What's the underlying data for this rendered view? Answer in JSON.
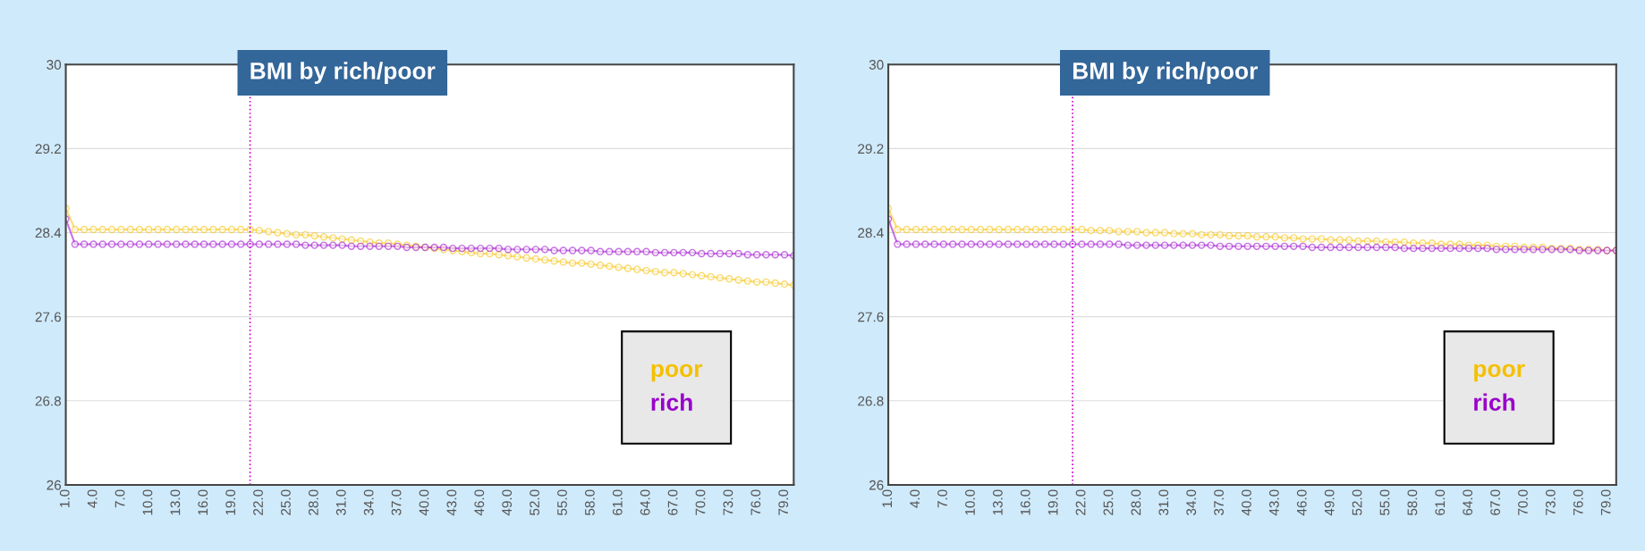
{
  "chart_data": [
    {
      "type": "line",
      "title": "BMI by rich/poor",
      "x": [
        1,
        2,
        3,
        4,
        5,
        6,
        7,
        8,
        9,
        10,
        11,
        12,
        13,
        14,
        15,
        16,
        17,
        18,
        19,
        20,
        21,
        22,
        23,
        24,
        25,
        26,
        27,
        28,
        29,
        30,
        31,
        32,
        33,
        34,
        35,
        36,
        37,
        38,
        39,
        40,
        41,
        42,
        43,
        44,
        45,
        46,
        47,
        48,
        49,
        50,
        51,
        52,
        53,
        54,
        55,
        56,
        57,
        58,
        59,
        60,
        61,
        62,
        63,
        64,
        65,
        66,
        67,
        68,
        69,
        70,
        71,
        72,
        73,
        74,
        75,
        76,
        77,
        78,
        79,
        80
      ],
      "series": [
        {
          "name": "poor",
          "color": "#f5c000",
          "values": [
            28.63,
            28.43,
            28.43,
            28.43,
            28.43,
            28.43,
            28.43,
            28.43,
            28.43,
            28.43,
            28.43,
            28.43,
            28.43,
            28.43,
            28.43,
            28.43,
            28.43,
            28.43,
            28.43,
            28.43,
            28.43,
            28.42,
            28.41,
            28.4,
            28.39,
            28.38,
            28.38,
            28.37,
            28.36,
            28.35,
            28.34,
            28.33,
            28.32,
            28.31,
            28.3,
            28.3,
            28.29,
            28.28,
            28.27,
            28.26,
            28.25,
            28.24,
            28.23,
            28.22,
            28.21,
            28.2,
            28.2,
            28.19,
            28.18,
            28.17,
            28.16,
            28.15,
            28.14,
            28.13,
            28.12,
            28.11,
            28.11,
            28.1,
            28.09,
            28.08,
            28.07,
            28.06,
            28.05,
            28.04,
            28.03,
            28.02,
            28.02,
            28.01,
            28.0,
            27.99,
            27.98,
            27.97,
            27.96,
            27.95,
            27.94,
            27.93,
            27.93,
            27.92,
            27.91,
            27.9
          ]
        },
        {
          "name": "rich",
          "color": "#9900cc",
          "values": [
            28.53,
            28.29,
            28.29,
            28.29,
            28.29,
            28.29,
            28.29,
            28.29,
            28.29,
            28.29,
            28.29,
            28.29,
            28.29,
            28.29,
            28.29,
            28.29,
            28.29,
            28.29,
            28.29,
            28.29,
            28.29,
            28.29,
            28.29,
            28.29,
            28.29,
            28.29,
            28.28,
            28.28,
            28.28,
            28.28,
            28.28,
            28.27,
            28.27,
            28.27,
            28.27,
            28.27,
            28.27,
            28.26,
            28.26,
            28.26,
            28.26,
            28.26,
            28.25,
            28.25,
            28.25,
            28.25,
            28.25,
            28.25,
            28.24,
            28.24,
            28.24,
            28.24,
            28.24,
            28.23,
            28.23,
            28.23,
            28.23,
            28.23,
            28.22,
            28.22,
            28.22,
            28.22,
            28.22,
            28.22,
            28.21,
            28.21,
            28.21,
            28.21,
            28.21,
            28.2,
            28.2,
            28.2,
            28.2,
            28.2,
            28.19,
            28.19,
            28.19,
            28.19,
            28.19,
            28.18
          ]
        }
      ],
      "ylim": [
        26,
        30
      ],
      "yticks": [
        26,
        26.8,
        27.6,
        28.4,
        29.2,
        30
      ],
      "xlim": [
        1,
        80
      ],
      "xticks": [
        {
          "value": 1,
          "label": "1.0"
        },
        {
          "value": 4,
          "label": "4.0"
        },
        {
          "value": 7,
          "label": "7.0"
        },
        {
          "value": 10,
          "label": "10.0"
        },
        {
          "value": 13,
          "label": "13.0"
        },
        {
          "value": 16,
          "label": "16.0"
        },
        {
          "value": 19,
          "label": "19.0"
        },
        {
          "value": 22,
          "label": "22.0"
        },
        {
          "value": 25,
          "label": "25.0"
        },
        {
          "value": 28,
          "label": "28.0"
        },
        {
          "value": 31,
          "label": "31.0"
        },
        {
          "value": 34,
          "label": "34.0"
        },
        {
          "value": 37,
          "label": "37.0"
        },
        {
          "value": 40,
          "label": "40.0"
        },
        {
          "value": 43,
          "label": "43.0"
        },
        {
          "value": 46,
          "label": "46.0"
        },
        {
          "value": 49,
          "label": "49.0"
        },
        {
          "value": 52,
          "label": "52.0"
        },
        {
          "value": 55,
          "label": "55.0"
        },
        {
          "value": 58,
          "label": "58.0"
        },
        {
          "value": 61,
          "label": "61.0"
        },
        {
          "value": 64,
          "label": "64.0"
        },
        {
          "value": 67,
          "label": "67.0"
        },
        {
          "value": 70,
          "label": "70.0"
        },
        {
          "value": 73,
          "label": "73.0"
        },
        {
          "value": 76,
          "label": "76.0"
        },
        {
          "value": 79,
          "label": "79.0"
        }
      ],
      "ref_lines": [
        {
          "axis": "x",
          "value": 21,
          "color": "#cc00cc",
          "line_style": "dotted"
        }
      ],
      "grid": "y",
      "legend": "bottom right",
      "marker": "circle",
      "line_style": "solid"
    },
    {
      "type": "line",
      "title": "BMI by rich/poor",
      "x": [
        1,
        2,
        3,
        4,
        5,
        6,
        7,
        8,
        9,
        10,
        11,
        12,
        13,
        14,
        15,
        16,
        17,
        18,
        19,
        20,
        21,
        22,
        23,
        24,
        25,
        26,
        27,
        28,
        29,
        30,
        31,
        32,
        33,
        34,
        35,
        36,
        37,
        38,
        39,
        40,
        41,
        42,
        43,
        44,
        45,
        46,
        47,
        48,
        49,
        50,
        51,
        52,
        53,
        54,
        55,
        56,
        57,
        58,
        59,
        60,
        61,
        62,
        63,
        64,
        65,
        66,
        67,
        68,
        69,
        70,
        71,
        72,
        73,
        74,
        75,
        76,
        77,
        78,
        79,
        80
      ],
      "series": [
        {
          "name": "poor",
          "color": "#f5c000",
          "values": [
            28.63,
            28.43,
            28.43,
            28.43,
            28.43,
            28.43,
            28.43,
            28.43,
            28.43,
            28.43,
            28.43,
            28.43,
            28.43,
            28.43,
            28.43,
            28.43,
            28.43,
            28.43,
            28.43,
            28.43,
            28.43,
            28.43,
            28.42,
            28.42,
            28.42,
            28.41,
            28.41,
            28.41,
            28.4,
            28.4,
            28.4,
            28.39,
            28.39,
            28.39,
            28.38,
            28.38,
            28.38,
            28.37,
            28.37,
            28.37,
            28.36,
            28.36,
            28.36,
            28.35,
            28.35,
            28.34,
            28.34,
            28.34,
            28.33,
            28.33,
            28.33,
            28.32,
            28.32,
            28.32,
            28.31,
            28.31,
            28.31,
            28.3,
            28.3,
            28.3,
            28.29,
            28.29,
            28.29,
            28.28,
            28.28,
            28.28,
            28.27,
            28.27,
            28.27,
            28.26,
            28.26,
            28.26,
            28.25,
            28.25,
            28.25,
            28.24,
            28.24,
            28.24,
            28.23,
            28.23
          ]
        },
        {
          "name": "rich",
          "color": "#9900cc",
          "values": [
            28.53,
            28.29,
            28.29,
            28.29,
            28.29,
            28.29,
            28.29,
            28.29,
            28.29,
            28.29,
            28.29,
            28.29,
            28.29,
            28.29,
            28.29,
            28.29,
            28.29,
            28.29,
            28.29,
            28.29,
            28.29,
            28.29,
            28.29,
            28.29,
            28.29,
            28.29,
            28.28,
            28.28,
            28.28,
            28.28,
            28.28,
            28.28,
            28.28,
            28.28,
            28.28,
            28.28,
            28.27,
            28.27,
            28.27,
            28.27,
            28.27,
            28.27,
            28.27,
            28.27,
            28.27,
            28.27,
            28.26,
            28.26,
            28.26,
            28.26,
            28.26,
            28.26,
            28.26,
            28.26,
            28.26,
            28.26,
            28.25,
            28.25,
            28.25,
            28.25,
            28.25,
            28.25,
            28.25,
            28.25,
            28.25,
            28.25,
            28.24,
            28.24,
            28.24,
            28.24,
            28.24,
            28.24,
            28.24,
            28.24,
            28.24,
            28.23,
            28.23,
            28.23,
            28.23,
            28.23
          ]
        }
      ],
      "ylim": [
        26,
        30
      ],
      "yticks": [
        26,
        26.8,
        27.6,
        28.4,
        29.2,
        30
      ],
      "xlim": [
        1,
        80
      ],
      "xticks": [
        {
          "value": 1,
          "label": "1.0"
        },
        {
          "value": 4,
          "label": "4.0"
        },
        {
          "value": 7,
          "label": "7.0"
        },
        {
          "value": 10,
          "label": "10.0"
        },
        {
          "value": 13,
          "label": "13.0"
        },
        {
          "value": 16,
          "label": "16.0"
        },
        {
          "value": 19,
          "label": "19.0"
        },
        {
          "value": 22,
          "label": "22.0"
        },
        {
          "value": 25,
          "label": "25.0"
        },
        {
          "value": 28,
          "label": "28.0"
        },
        {
          "value": 31,
          "label": "31.0"
        },
        {
          "value": 34,
          "label": "34.0"
        },
        {
          "value": 37,
          "label": "37.0"
        },
        {
          "value": 40,
          "label": "40.0"
        },
        {
          "value": 43,
          "label": "43.0"
        },
        {
          "value": 46,
          "label": "46.0"
        },
        {
          "value": 49,
          "label": "49.0"
        },
        {
          "value": 52,
          "label": "52.0"
        },
        {
          "value": 55,
          "label": "55.0"
        },
        {
          "value": 58,
          "label": "58.0"
        },
        {
          "value": 61,
          "label": "61.0"
        },
        {
          "value": 64,
          "label": "64.0"
        },
        {
          "value": 67,
          "label": "67.0"
        },
        {
          "value": 70,
          "label": "70.0"
        },
        {
          "value": 73,
          "label": "73.0"
        },
        {
          "value": 76,
          "label": "76.0"
        },
        {
          "value": 79,
          "label": "79.0"
        }
      ],
      "ref_lines": [
        {
          "axis": "x",
          "value": 21,
          "color": "#cc00cc",
          "line_style": "dotted"
        }
      ],
      "grid": "y",
      "legend": "bottom right",
      "marker": "circle",
      "line_style": "solid"
    }
  ]
}
